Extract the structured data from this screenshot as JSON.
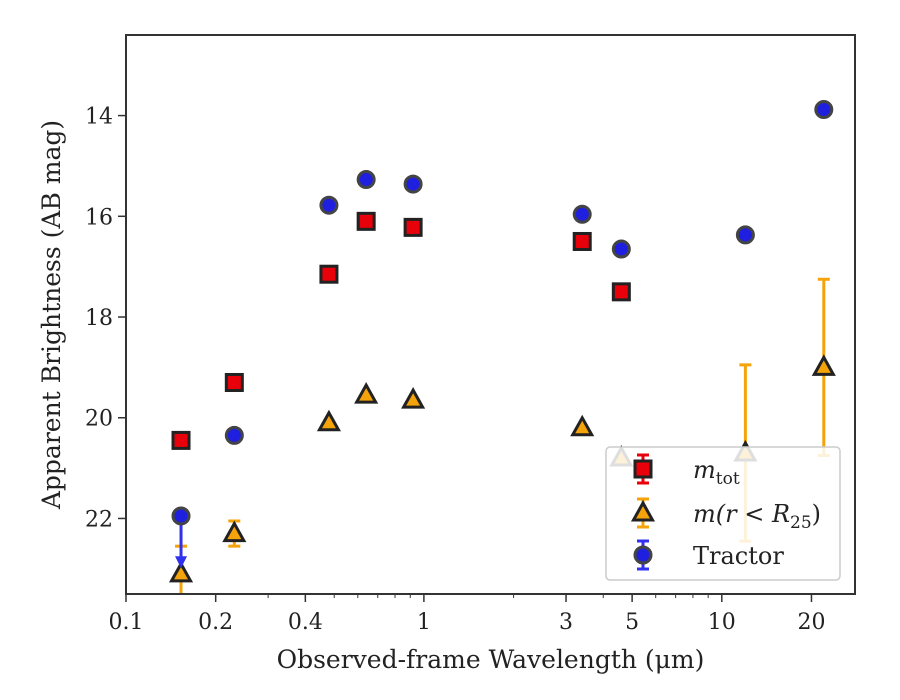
{
  "chart_data": {
    "type": "scatter",
    "title": "",
    "xlabel": "Observed-frame Wavelength (μm)",
    "ylabel": "Apparent Brightness (AB mag)",
    "x_scale": "log",
    "xlim": [
      0.1,
      28
    ],
    "ylim": [
      23.5,
      12.4
    ],
    "y_inverted": true,
    "grid": false,
    "legend_position": "lower-right",
    "x_ticks": [
      {
        "value": 0.1,
        "label": "0.1"
      },
      {
        "value": 0.2,
        "label": "0.2"
      },
      {
        "value": 0.4,
        "label": "0.4"
      },
      {
        "value": 1,
        "label": "1"
      },
      {
        "value": 3,
        "label": "3"
      },
      {
        "value": 5,
        "label": "5"
      },
      {
        "value": 10,
        "label": "10"
      },
      {
        "value": 20,
        "label": "20"
      }
    ],
    "y_ticks": [
      {
        "value": 14,
        "label": "14"
      },
      {
        "value": 16,
        "label": "16"
      },
      {
        "value": 18,
        "label": "18"
      },
      {
        "value": 20,
        "label": "20"
      },
      {
        "value": 22,
        "label": "22"
      }
    ],
    "series": [
      {
        "name": "m_tot",
        "legend_main": "m",
        "legend_sub": "tot",
        "marker": "square",
        "face_color": "#e8000b",
        "edge_color": "#222222",
        "error_color": "#e8000b",
        "points": [
          {
            "x": 0.153,
            "y": 20.45
          },
          {
            "x": 0.231,
            "y": 19.3
          },
          {
            "x": 0.48,
            "y": 17.15
          },
          {
            "x": 0.64,
            "y": 16.1
          },
          {
            "x": 0.92,
            "y": 16.22
          },
          {
            "x": 3.4,
            "y": 16.5
          },
          {
            "x": 4.6,
            "y": 17.5
          }
        ]
      },
      {
        "name": "m(r<R25)",
        "legend_main": "m(r < R",
        "legend_sub": "25",
        "legend_tail": ")",
        "marker": "triangle",
        "face_color": "#f5a30a",
        "edge_color": "#222222",
        "error_color": "#f5a30a",
        "points": [
          {
            "x": 0.153,
            "y": 23.1,
            "yerr": 0.55
          },
          {
            "x": 0.231,
            "y": 22.3,
            "yerr": 0.25
          },
          {
            "x": 0.48,
            "y": 20.1
          },
          {
            "x": 0.64,
            "y": 19.55
          },
          {
            "x": 0.92,
            "y": 19.65
          },
          {
            "x": 3.4,
            "y": 20.2
          },
          {
            "x": 4.6,
            "y": 20.8
          },
          {
            "x": 12.0,
            "y": 20.7,
            "yerr": 1.75
          },
          {
            "x": 22.0,
            "y": 19.0,
            "yerr": 1.75
          }
        ]
      },
      {
        "name": "Tractor",
        "legend_main": "Tractor",
        "marker": "circle",
        "face_color": "#1f1fe0",
        "edge_color": "#444444",
        "error_color": "#3030ee",
        "points": [
          {
            "x": 0.153,
            "y": 21.95,
            "upper_limit": true,
            "limit_to": 22.95
          },
          {
            "x": 0.231,
            "y": 20.35
          },
          {
            "x": 0.48,
            "y": 15.78
          },
          {
            "x": 0.64,
            "y": 15.27
          },
          {
            "x": 0.92,
            "y": 15.36
          },
          {
            "x": 3.4,
            "y": 15.96
          },
          {
            "x": 4.6,
            "y": 16.65
          },
          {
            "x": 12.0,
            "y": 16.37
          },
          {
            "x": 22.0,
            "y": 13.88
          }
        ]
      }
    ]
  }
}
